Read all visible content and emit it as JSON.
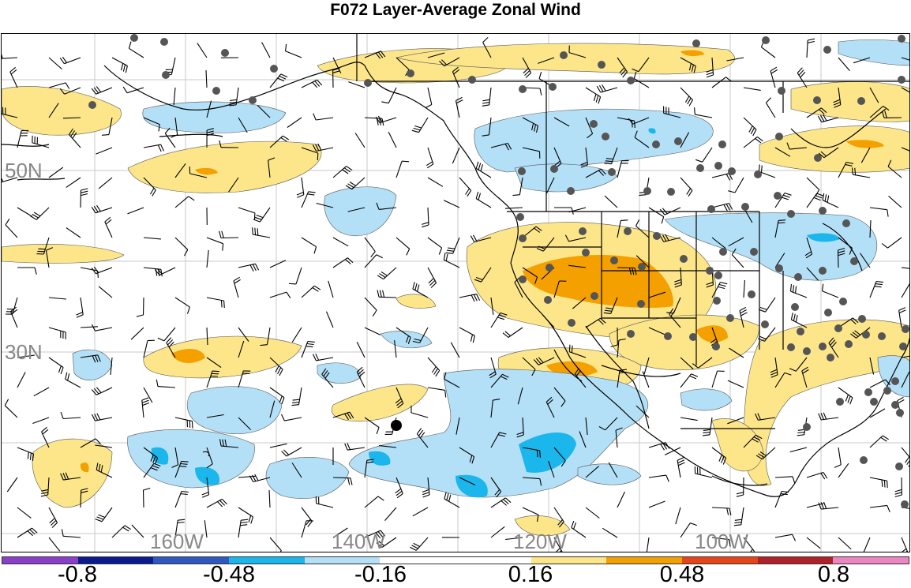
{
  "title": "F072 Layer-Average Zonal Wind",
  "map": {
    "lat_labels": [
      "50N",
      "30N"
    ],
    "lon_labels": [
      "160W",
      "140W",
      "120W",
      "100W"
    ],
    "label_color": "#888888",
    "positive_colors": [
      "#fde68a",
      "#f4a000",
      "#e8441a",
      "#b0202a"
    ],
    "negative_colors": [
      "#b3e0f7",
      "#1ab6ec",
      "#2f59c0",
      "#0a1a8f"
    ],
    "coast_color": "#000000",
    "barb_color": "#000000",
    "station_color": "#555555"
  },
  "colorbar": {
    "colors": [
      "#8b3fc9",
      "#0a1a8f",
      "#2f59c0",
      "#1ab6ec",
      "#b3e0f7",
      "#ffffff",
      "#ffffff",
      "#fde68a",
      "#f4a000",
      "#e8441a",
      "#b0202a",
      "#ec86c0"
    ],
    "labels": [
      "-0.8",
      "-0.48",
      "-0.16",
      "0.16",
      "0.48",
      "0.8"
    ]
  }
}
